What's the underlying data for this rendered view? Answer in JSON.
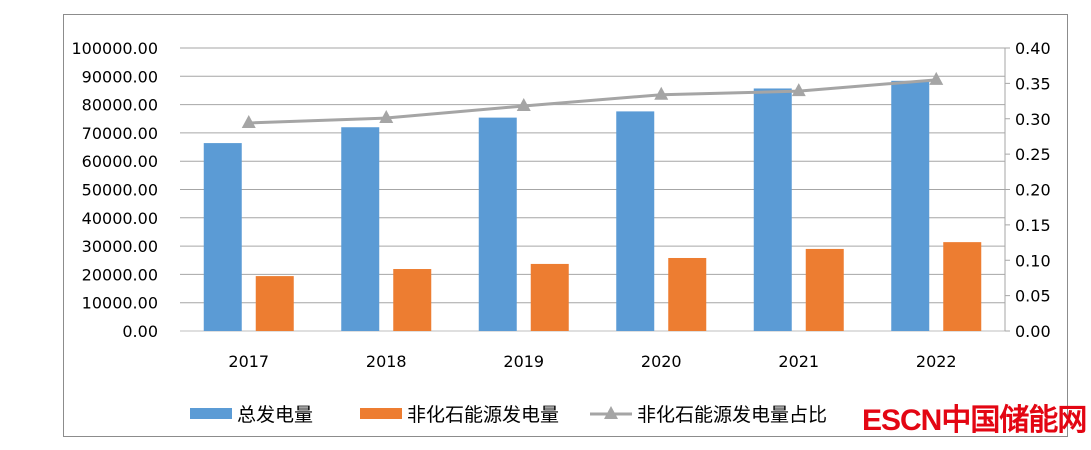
{
  "chart_data": {
    "type": "bar",
    "title": "",
    "categories": [
      "2017",
      "2018",
      "2019",
      "2020",
      "2021",
      "2022"
    ],
    "series": [
      {
        "name": "总发电量",
        "type": "bar",
        "axis": "left",
        "color": "#5b9bd5",
        "values": [
          66400,
          72000,
          75400,
          77600,
          85700,
          88400
        ]
      },
      {
        "name": "非化石能源发电量",
        "type": "bar",
        "axis": "left",
        "color": "#ed7d31",
        "values": [
          19400,
          21900,
          23700,
          25800,
          29000,
          31400
        ]
      },
      {
        "name": "非化石能源发电量占比",
        "type": "line",
        "axis": "right",
        "color": "#a5a5a5",
        "marker": "triangle",
        "values": [
          0.294,
          0.301,
          0.318,
          0.334,
          0.339,
          0.355
        ]
      }
    ],
    "left_axis": {
      "ylim": [
        0,
        100000
      ],
      "step": 10000,
      "ticks": [
        "0.00",
        "10000.00",
        "20000.00",
        "30000.00",
        "40000.00",
        "50000.00",
        "60000.00",
        "70000.00",
        "80000.00",
        "90000.00",
        "100000.00"
      ]
    },
    "right_axis": {
      "ylim": [
        0,
        0.4
      ],
      "step": 0.05,
      "ticks": [
        "0.00",
        "0.05",
        "0.10",
        "0.15",
        "0.20",
        "0.25",
        "0.30",
        "0.35",
        "0.40"
      ]
    },
    "grid": true,
    "legend": "bottom"
  },
  "watermark": "ESCN中国储能网"
}
